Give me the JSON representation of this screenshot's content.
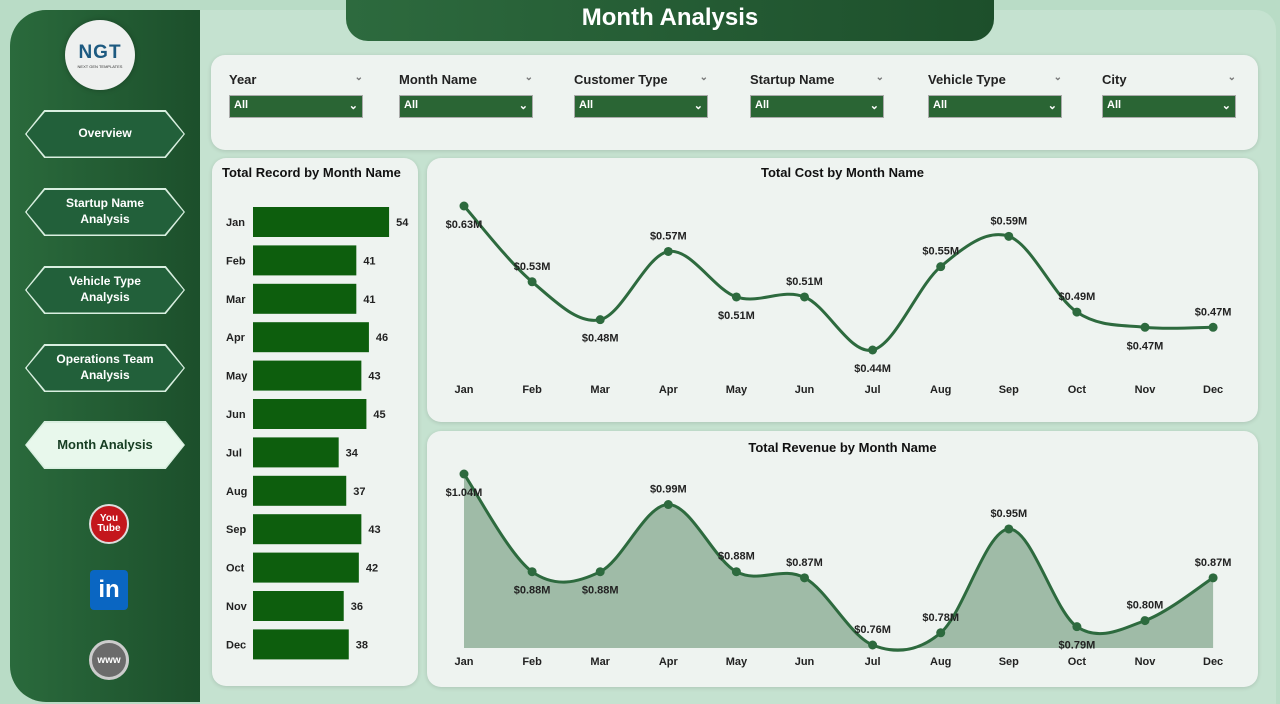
{
  "title": "Month Analysis",
  "logo": {
    "text": "NGT",
    "subtitle": "NEXT GEN TEMPLATES"
  },
  "nav": [
    {
      "label": "Overview"
    },
    {
      "label": "Startup Name Analysis"
    },
    {
      "label": "Vehicle Type Analysis"
    },
    {
      "label": "Operations Team Analysis"
    },
    {
      "label": "Month Analysis",
      "active": true
    }
  ],
  "social": [
    {
      "icon": "youtube-icon",
      "label": "You Tube"
    },
    {
      "icon": "linkedin-icon",
      "label": "in"
    },
    {
      "icon": "globe-icon",
      "label": "www"
    }
  ],
  "filters": [
    {
      "label": "Year",
      "value": "All"
    },
    {
      "label": "Month Name",
      "value": "All"
    },
    {
      "label": "Customer Type",
      "value": "All"
    },
    {
      "label": "Startup Name",
      "value": "All"
    },
    {
      "label": "Vehicle Type",
      "value": "All"
    },
    {
      "label": "City",
      "value": "All"
    }
  ],
  "colors": {
    "accent": "#2a6534",
    "bar": "#0d5e0d",
    "line": "#2d6a3e",
    "area": "#9fbba7"
  },
  "chart_data": [
    {
      "type": "bar",
      "orientation": "horizontal",
      "title": "Total Record by Month Name",
      "categories": [
        "Jan",
        "Feb",
        "Mar",
        "Apr",
        "May",
        "Jun",
        "Jul",
        "Aug",
        "Sep",
        "Oct",
        "Nov",
        "Dec"
      ],
      "values": [
        54,
        41,
        41,
        46,
        43,
        45,
        34,
        37,
        43,
        42,
        36,
        38
      ]
    },
    {
      "type": "line",
      "title": "Total Cost by Month Name",
      "categories": [
        "Jan",
        "Feb",
        "Mar",
        "Apr",
        "May",
        "Jun",
        "Jul",
        "Aug",
        "Sep",
        "Oct",
        "Nov",
        "Dec"
      ],
      "values": [
        0.63,
        0.53,
        0.48,
        0.57,
        0.51,
        0.51,
        0.44,
        0.55,
        0.59,
        0.49,
        0.47,
        0.47
      ],
      "labels": [
        "$0.63M",
        "$0.53M",
        "$0.48M",
        "$0.57M",
        "$0.51M",
        "$0.51M",
        "$0.44M",
        "$0.55M",
        "$0.59M",
        "$0.49M",
        "$0.47M",
        "$0.47M"
      ]
    },
    {
      "type": "area",
      "title": "Total Revenue by Month Name",
      "categories": [
        "Jan",
        "Feb",
        "Mar",
        "Apr",
        "May",
        "Jun",
        "Jul",
        "Aug",
        "Sep",
        "Oct",
        "Nov",
        "Dec"
      ],
      "values": [
        1.04,
        0.88,
        0.88,
        0.99,
        0.88,
        0.87,
        0.76,
        0.78,
        0.95,
        0.79,
        0.8,
        0.87
      ],
      "labels": [
        "$1.04M",
        "$0.88M",
        "$0.88M",
        "$0.99M",
        "$0.88M",
        "$0.87M",
        "$0.76M",
        "$0.78M",
        "$0.95M",
        "$0.79M",
        "$0.80M",
        "$0.87M"
      ]
    }
  ]
}
